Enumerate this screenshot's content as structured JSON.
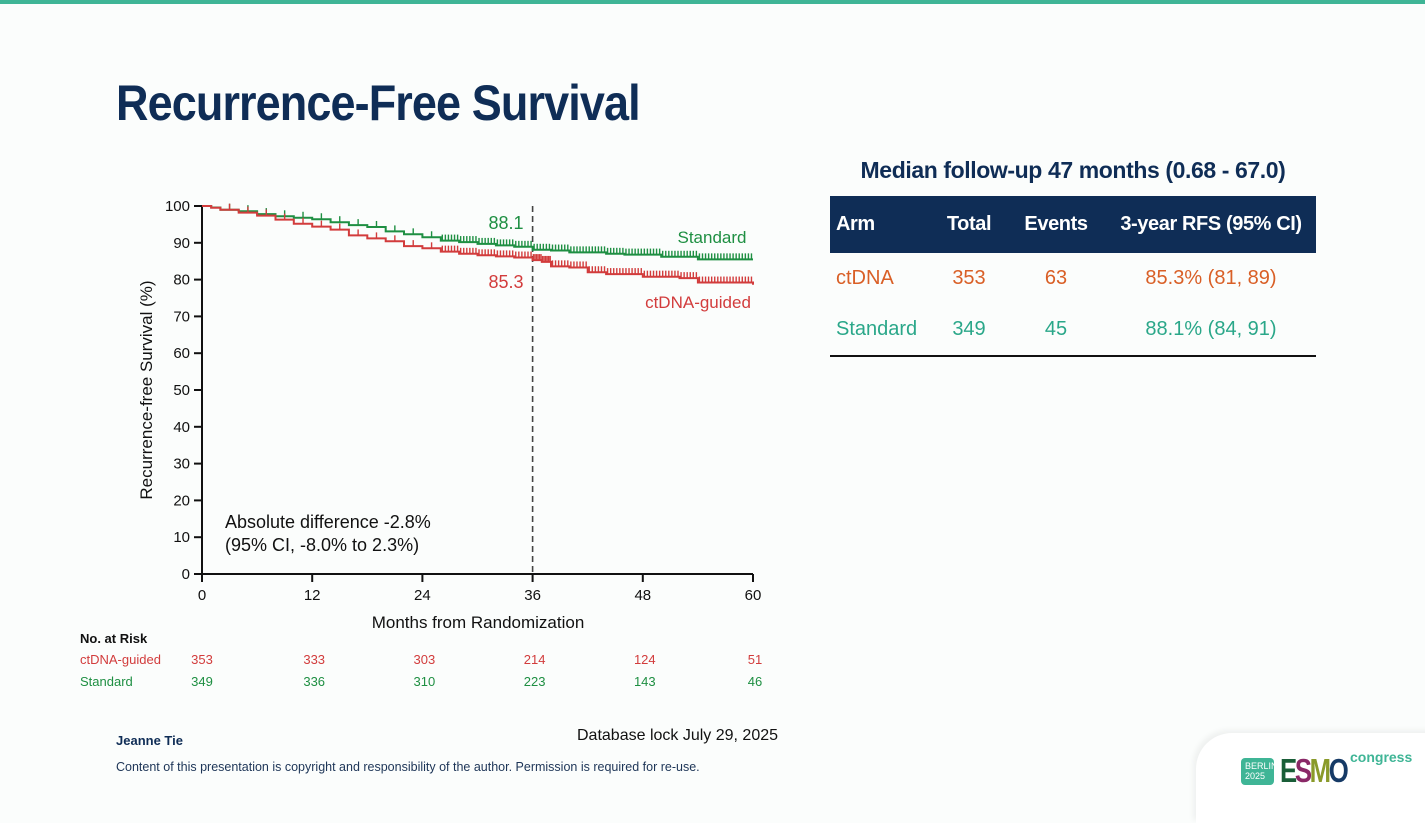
{
  "slide": {
    "title": "Recurrence-Free Survival",
    "accent_color": "#3fb596",
    "title_color": "#0f2d56"
  },
  "chart_data": {
    "type": "line",
    "subtype": "kaplan-meier step",
    "xlabel": "Months from Randomization",
    "ylabel": "Recurrence-free Survival (%)",
    "xlim": [
      0,
      60
    ],
    "ylim": [
      0,
      100
    ],
    "x_ticks": [
      "0",
      "12",
      "24",
      "36",
      "48",
      "60"
    ],
    "y_ticks": [
      "0",
      "10",
      "20",
      "30",
      "40",
      "50",
      "60",
      "70",
      "80",
      "90",
      "100"
    ],
    "grid": false,
    "reference_line": {
      "x": 36,
      "style": "dashed"
    },
    "series": [
      {
        "name": "Standard",
        "color": "#1e8f42",
        "label_at_36": "88.1",
        "x": [
          0,
          1,
          2,
          4,
          6,
          8,
          10,
          12,
          14,
          16,
          18,
          20,
          22,
          24,
          26,
          28,
          30,
          32,
          34,
          36,
          38,
          40,
          42,
          44,
          46,
          48,
          50,
          52,
          54,
          56,
          58,
          60
        ],
        "y": [
          100,
          99.6,
          99.0,
          98.6,
          97.8,
          97.2,
          96.8,
          96.4,
          95.6,
          94.8,
          94.3,
          93.1,
          92.3,
          91.5,
          90.6,
          90.2,
          89.7,
          89.3,
          88.9,
          88.1,
          87.9,
          87.4,
          87.4,
          87.0,
          86.8,
          86.8,
          86.2,
          86.2,
          85.5,
          85.5,
          85.5,
          85.5
        ]
      },
      {
        "name": "ctDNA-guided",
        "color": "#d23c3c",
        "label_at_36": "85.3",
        "x": [
          0,
          1,
          2,
          4,
          6,
          8,
          10,
          12,
          14,
          16,
          18,
          20,
          22,
          24,
          26,
          28,
          30,
          32,
          34,
          36,
          37,
          38,
          40,
          42,
          44,
          46,
          48,
          50,
          52,
          54,
          56,
          58,
          60
        ],
        "y": [
          100,
          99.5,
          99.0,
          98.2,
          97.4,
          96.3,
          95.2,
          94.4,
          93.6,
          92.0,
          91.2,
          90.4,
          89.1,
          88.5,
          87.6,
          87.0,
          86.6,
          86.3,
          86.0,
          85.3,
          84.8,
          83.6,
          83.3,
          82.0,
          81.5,
          81.5,
          80.8,
          80.8,
          80.4,
          79.2,
          79.2,
          79.2,
          78.6
        ]
      }
    ],
    "annotation": {
      "line1": "Absolute difference -2.8%",
      "line2": "(95% CI, -8.0% to 2.3%)"
    },
    "risk_table": {
      "title": "No. at Risk",
      "rows": [
        {
          "name": "ctDNA-guided",
          "values": [
            "353",
            "333",
            "303",
            "214",
            "124",
            "51"
          ]
        },
        {
          "name": "Standard",
          "values": [
            "349",
            "336",
            "310",
            "223",
            "143",
            "46"
          ]
        }
      ]
    }
  },
  "summary": {
    "followup": "Median follow-up 47 months (0.68 - 67.0)",
    "headers": [
      "Arm",
      "Total",
      "Events",
      "3-year RFS (95% CI)"
    ],
    "rows": [
      {
        "arm": "ctDNA",
        "total": "353",
        "events": "63",
        "rfs": "85.3% (81, 89)",
        "color": "#d95f26"
      },
      {
        "arm": "Standard",
        "total": "349",
        "events": "45",
        "rfs": "88.1% (84, 91)",
        "color": "#2aa789"
      }
    ]
  },
  "footer": {
    "author": "Jeanne Tie",
    "database_lock": "Database lock July 29, 2025",
    "copyright": "Content of this presentation is copyright and responsibility of the author. Permission is required for re-use."
  },
  "logo": {
    "city": "BERLIN",
    "year": "2025",
    "letters": [
      "E",
      "S",
      "M",
      "O"
    ],
    "suffix": "congress"
  }
}
